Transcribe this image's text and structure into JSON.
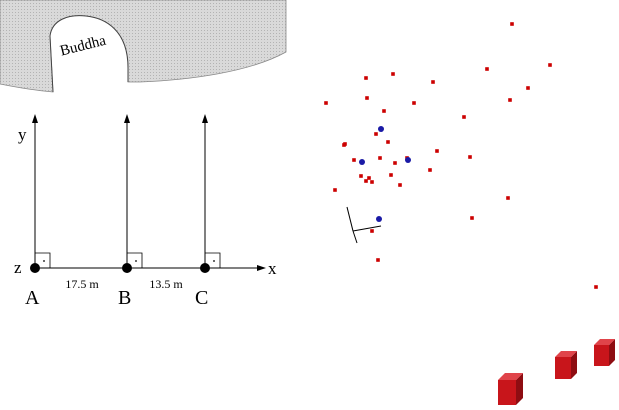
{
  "diagram": {
    "buddha_label": "Buddha",
    "axes": {
      "y_label": "y",
      "z_label": "z",
      "x_label": "x"
    },
    "stations": [
      {
        "name": "A"
      },
      {
        "name": "B"
      },
      {
        "name": "C"
      }
    ],
    "distances": [
      {
        "label": "17.5 m",
        "from": "A",
        "to": "B"
      },
      {
        "label": "13.5 m",
        "from": "B",
        "to": "C"
      }
    ]
  },
  "point_cloud": {
    "colors": {
      "red": "#cc0000",
      "blue": "#1a1aa6",
      "box": "#c8151b"
    },
    "red_point_count": 36,
    "blue_point_count": 4,
    "box_count": 3
  }
}
